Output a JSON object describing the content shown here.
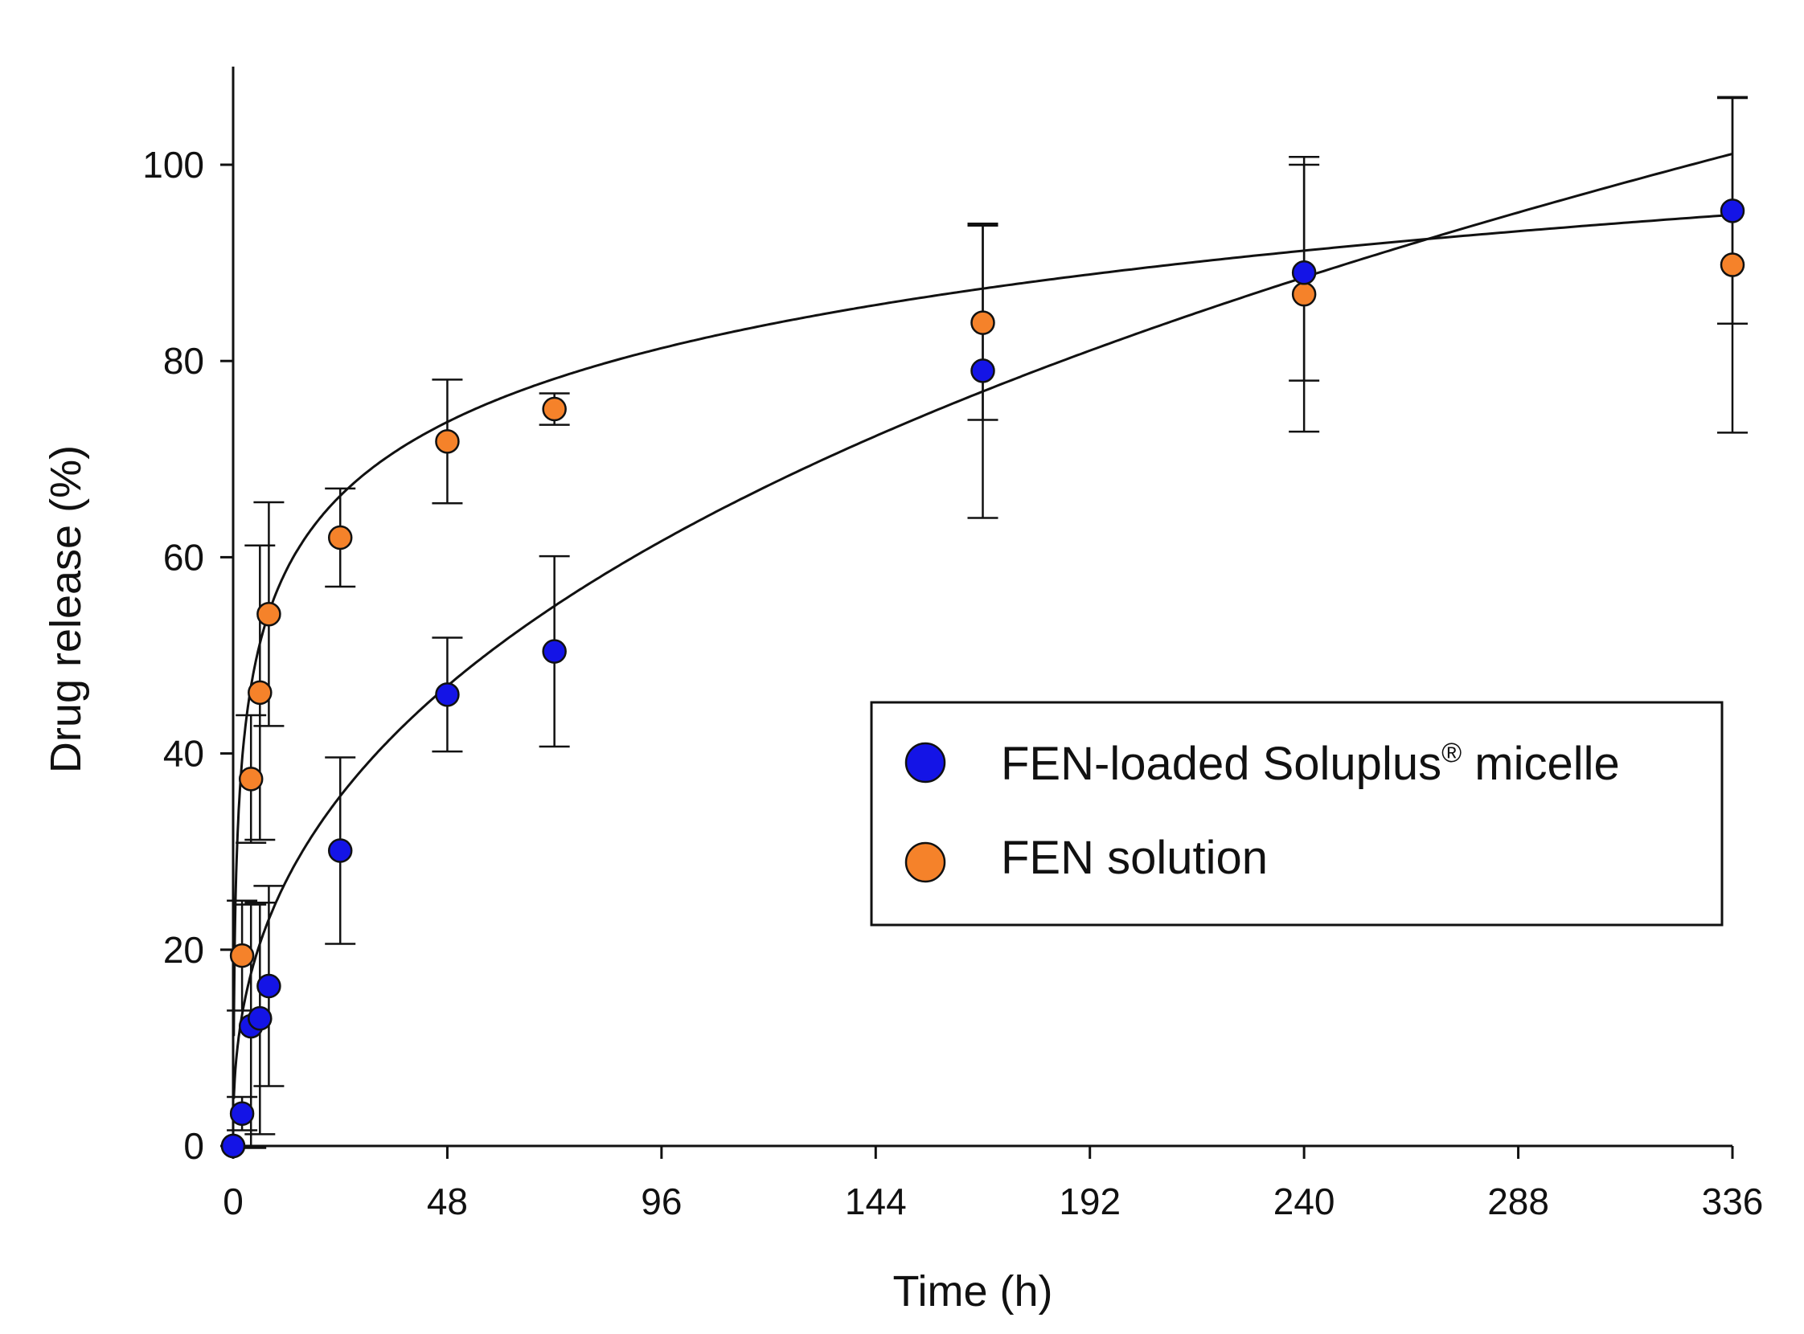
{
  "chart_data": {
    "type": "scatter",
    "title": "",
    "xlabel": "Time (h)",
    "ylabel": "Drug release (%)",
    "xlim": [
      0,
      336
    ],
    "ylim": [
      0,
      110
    ],
    "x_ticks": [
      0,
      48,
      96,
      144,
      192,
      240,
      288,
      336
    ],
    "y_ticks": [
      0,
      20,
      40,
      60,
      80,
      100
    ],
    "grid": false,
    "legend_position": "center-right",
    "colors": {
      "micelle": "#1414e6",
      "solution": "#f5822a",
      "axes": "#111111",
      "fit": "#111111"
    },
    "series": [
      {
        "name": "FEN-loaded Soluplus",
        "name_superscript": "®",
        "name_suffix": " micelle",
        "color": "#1414e6",
        "x": [
          0,
          2,
          4,
          6,
          8,
          24,
          48,
          72,
          168,
          240,
          336
        ],
        "y": [
          0,
          3.3,
          12.2,
          13,
          16.3,
          30.1,
          46,
          50.4,
          79,
          89,
          95.3
        ],
        "error": [
          0,
          1.7,
          12.4,
          11.8,
          10.2,
          9.5,
          5.8,
          9.7,
          15,
          11,
          11.5
        ],
        "fit": {
          "model": "power",
          "a": 10.16,
          "b": 0.395
        }
      },
      {
        "name": "FEN solution",
        "color": "#f5822a",
        "x": [
          0,
          2,
          4,
          6,
          8,
          24,
          48,
          72,
          168,
          240,
          336
        ],
        "y": [
          0,
          19.4,
          37.4,
          46.2,
          54.2,
          62,
          71.8,
          75.1,
          83.9,
          86.8,
          89.8
        ],
        "error": [
          0,
          5.6,
          6.5,
          15,
          11.4,
          5,
          6.3,
          1.6,
          9.9,
          14,
          17.1
        ],
        "fit": {
          "model": "log",
          "a": 31.78,
          "b": 10.85
        }
      }
    ]
  }
}
